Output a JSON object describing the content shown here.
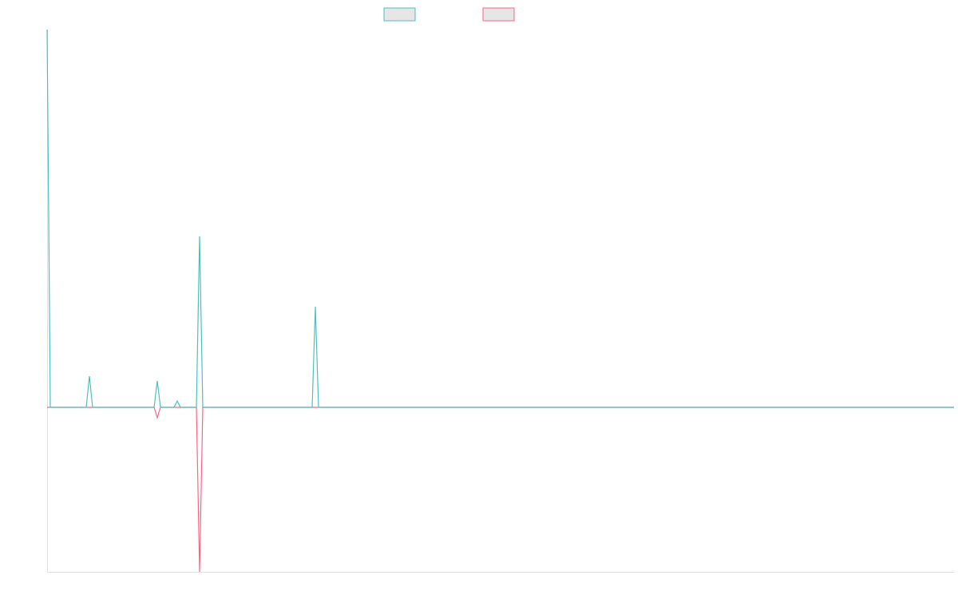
{
  "chart_data": {
    "type": "line",
    "x": [
      0,
      1,
      12.25,
      13.25,
      14.25,
      33.5,
      34.5,
      35.5,
      39.75,
      40.75,
      41.75,
      46.75,
      47.75,
      48.75,
      83,
      84,
      85,
      284
    ],
    "series": [
      {
        "color": "#4bc0c0",
        "values": [
          473,
          0,
          0,
          39,
          0,
          0,
          33,
          0,
          0,
          8,
          0,
          0,
          214,
          0,
          0,
          126,
          0,
          0
        ]
      },
      {
        "color": "#ff6384",
        "values": [
          0,
          0,
          0,
          0,
          0,
          0,
          -13,
          0,
          0,
          0,
          0,
          0,
          -206,
          0,
          0,
          0,
          0,
          0
        ]
      }
    ],
    "xlim": [
      0,
      284
    ],
    "ylim": [
      -206,
      473
    ]
  }
}
